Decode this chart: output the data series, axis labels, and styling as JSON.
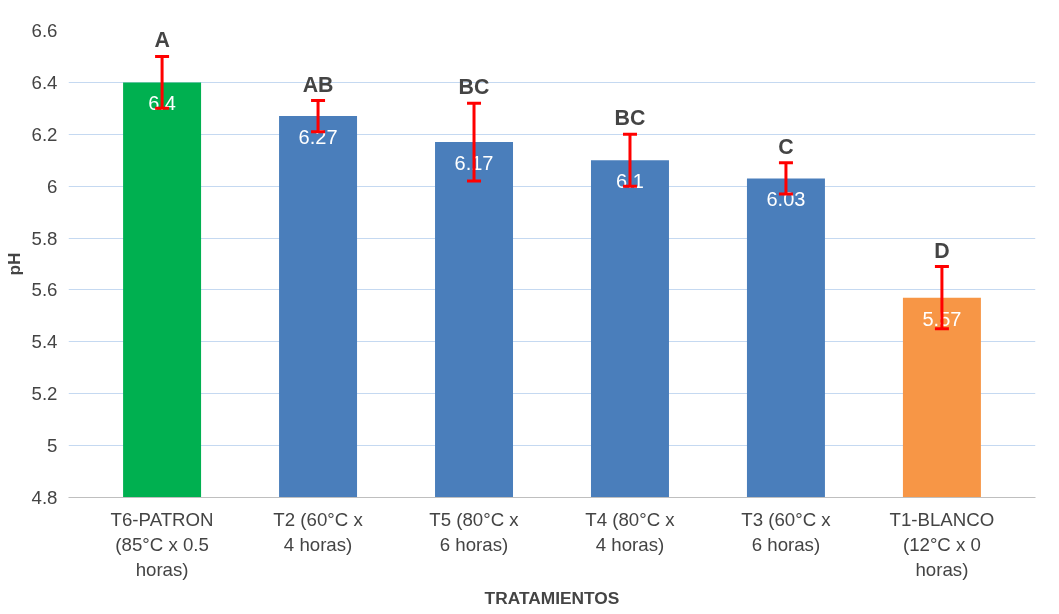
{
  "chart_data": {
    "type": "bar",
    "xlabel": "TRATAMIENTOS",
    "ylabel": "pH",
    "categories": [
      "T6-PATRON (85°C x 0.5 horas)",
      "T2 (60°C x 4 horas)",
      "T5 (80°C x 6 horas)",
      "T4 (80°C x 4 horas)",
      "T3 (60°C x 6 horas)",
      "T1-BLANCO (12°C x 0 horas)"
    ],
    "values": [
      6.4,
      6.27,
      6.17,
      6.1,
      6.03,
      5.57
    ],
    "colors": [
      "#00b050",
      "#4a7ebb",
      "#4a7ebb",
      "#4a7ebb",
      "#4a7ebb",
      "#f79646"
    ],
    "errors": [
      0.1,
      0.06,
      0.15,
      0.1,
      0.06,
      0.12
    ],
    "data_labels": true,
    "annotations": [
      {
        "text": "A",
        "x": "T6-PATRON (85°C x 0.5 horas)",
        "y": 6.5
      },
      {
        "text": "AB",
        "x": "T2 (60°C x 4 horas)",
        "y": 6.33
      },
      {
        "text": "BC",
        "x": "T5 (80°C x 6 horas)",
        "y": 6.32
      },
      {
        "text": "BC",
        "x": "T4 (80°C x 4 horas)",
        "y": 6.2
      },
      {
        "text": "C",
        "x": "T3 (60°C x 6 horas)",
        "y": 6.09
      },
      {
        "text": "D",
        "x": "T1-BLANCO (12°C x 0 horas)",
        "y": 5.69
      }
    ],
    "ylim": [
      4.8,
      6.6
    ],
    "yticks": [
      4.8,
      5,
      5.2,
      5.4,
      5.6,
      5.8,
      6,
      6.2,
      6.4,
      6.6
    ],
    "grid": "y"
  }
}
